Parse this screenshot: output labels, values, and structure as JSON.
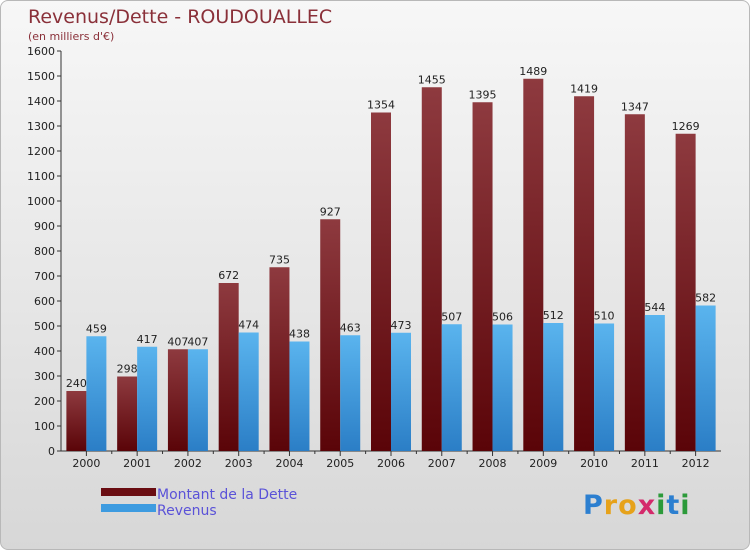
{
  "header": {
    "title": "Revenus/Dette - ROUDOUALLEC",
    "subtitle": "(en milliers d'€)"
  },
  "logo": {
    "text": "Proxiti"
  },
  "colors": {
    "dette": "#7a1a22",
    "revenus": "#3d8ed6",
    "accent": "#8a3039"
  },
  "chart_data": {
    "type": "bar",
    "title": "Revenus/Dette - ROUDOUALLEC",
    "ylabel": "(en milliers d'€)",
    "xlabel": "",
    "ylim": [
      0,
      1600
    ],
    "ytick_step": 100,
    "grid": false,
    "legend_position": "bottom-left",
    "categories": [
      "2000",
      "2001",
      "2002",
      "2003",
      "2004",
      "2005",
      "2006",
      "2007",
      "2008",
      "2009",
      "2010",
      "2011",
      "2012"
    ],
    "series": [
      {
        "name": "Montant de la Dette",
        "values": [
          240,
          298,
          407,
          672,
          735,
          927,
          1354,
          1455,
          1395,
          1489,
          1419,
          1347,
          1269
        ]
      },
      {
        "name": "Revenus",
        "values": [
          459,
          417,
          407,
          474,
          438,
          463,
          473,
          507,
          506,
          512,
          510,
          544,
          582
        ]
      }
    ]
  }
}
